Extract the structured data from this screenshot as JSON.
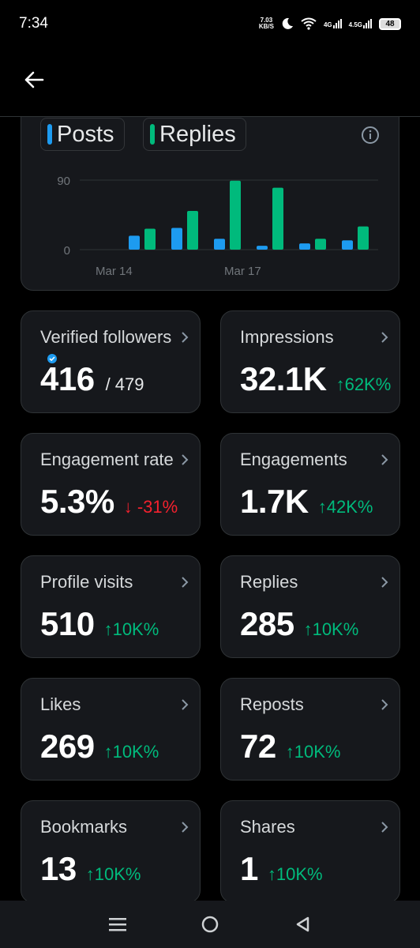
{
  "status": {
    "time": "7:34",
    "netspeed_top": "7.03",
    "netspeed_bottom": "KB/S",
    "net1": "4G",
    "net2": "4.5G",
    "battery": "48"
  },
  "chart": {
    "legend": [
      "Posts",
      "Replies"
    ],
    "colors": {
      "posts": "#1d9bf0",
      "replies": "#00ba7c"
    },
    "chart_data": {
      "type": "bar",
      "categories": [
        "",
        "",
        "",
        "",
        "",
        "",
        ""
      ],
      "x_tick_labels": [
        "Mar 14",
        "Mar 17"
      ],
      "y_ticks": [
        0,
        90
      ],
      "ylim": [
        0,
        100
      ],
      "series": [
        {
          "name": "Posts",
          "values": [
            18,
            28,
            14,
            5,
            8,
            12,
            0
          ]
        },
        {
          "name": "Replies",
          "values": [
            27,
            50,
            89,
            80,
            14,
            30,
            0
          ]
        }
      ]
    }
  },
  "metrics": [
    {
      "label": "Verified followers",
      "value": "416",
      "sub": "/ 479",
      "verified": true
    },
    {
      "label": "Impressions",
      "value": "32.1K",
      "delta": "↑62K%",
      "dir": "up"
    },
    {
      "label": "Engagement rate",
      "value": "5.3%",
      "delta": "↓ -31%",
      "dir": "down"
    },
    {
      "label": "Engagements",
      "value": "1.7K",
      "delta": "↑42K%",
      "dir": "up"
    },
    {
      "label": "Profile visits",
      "value": "510",
      "delta": "↑10K%",
      "dir": "up"
    },
    {
      "label": "Replies",
      "value": "285",
      "delta": "↑10K%",
      "dir": "up"
    },
    {
      "label": "Likes",
      "value": "269",
      "delta": "↑10K%",
      "dir": "up"
    },
    {
      "label": "Reposts",
      "value": "72",
      "delta": "↑10K%",
      "dir": "up"
    },
    {
      "label": "Bookmarks",
      "value": "13",
      "delta": "↑10K%",
      "dir": "up"
    },
    {
      "label": "Shares",
      "value": "1",
      "delta": "↑10K%",
      "dir": "up"
    }
  ],
  "icons": {
    "back": "arrow-left-icon",
    "info": "info-icon",
    "chevron": "chevron-right-icon",
    "nav": [
      "menu-icon",
      "home-circle-icon",
      "back-triangle-icon"
    ]
  }
}
